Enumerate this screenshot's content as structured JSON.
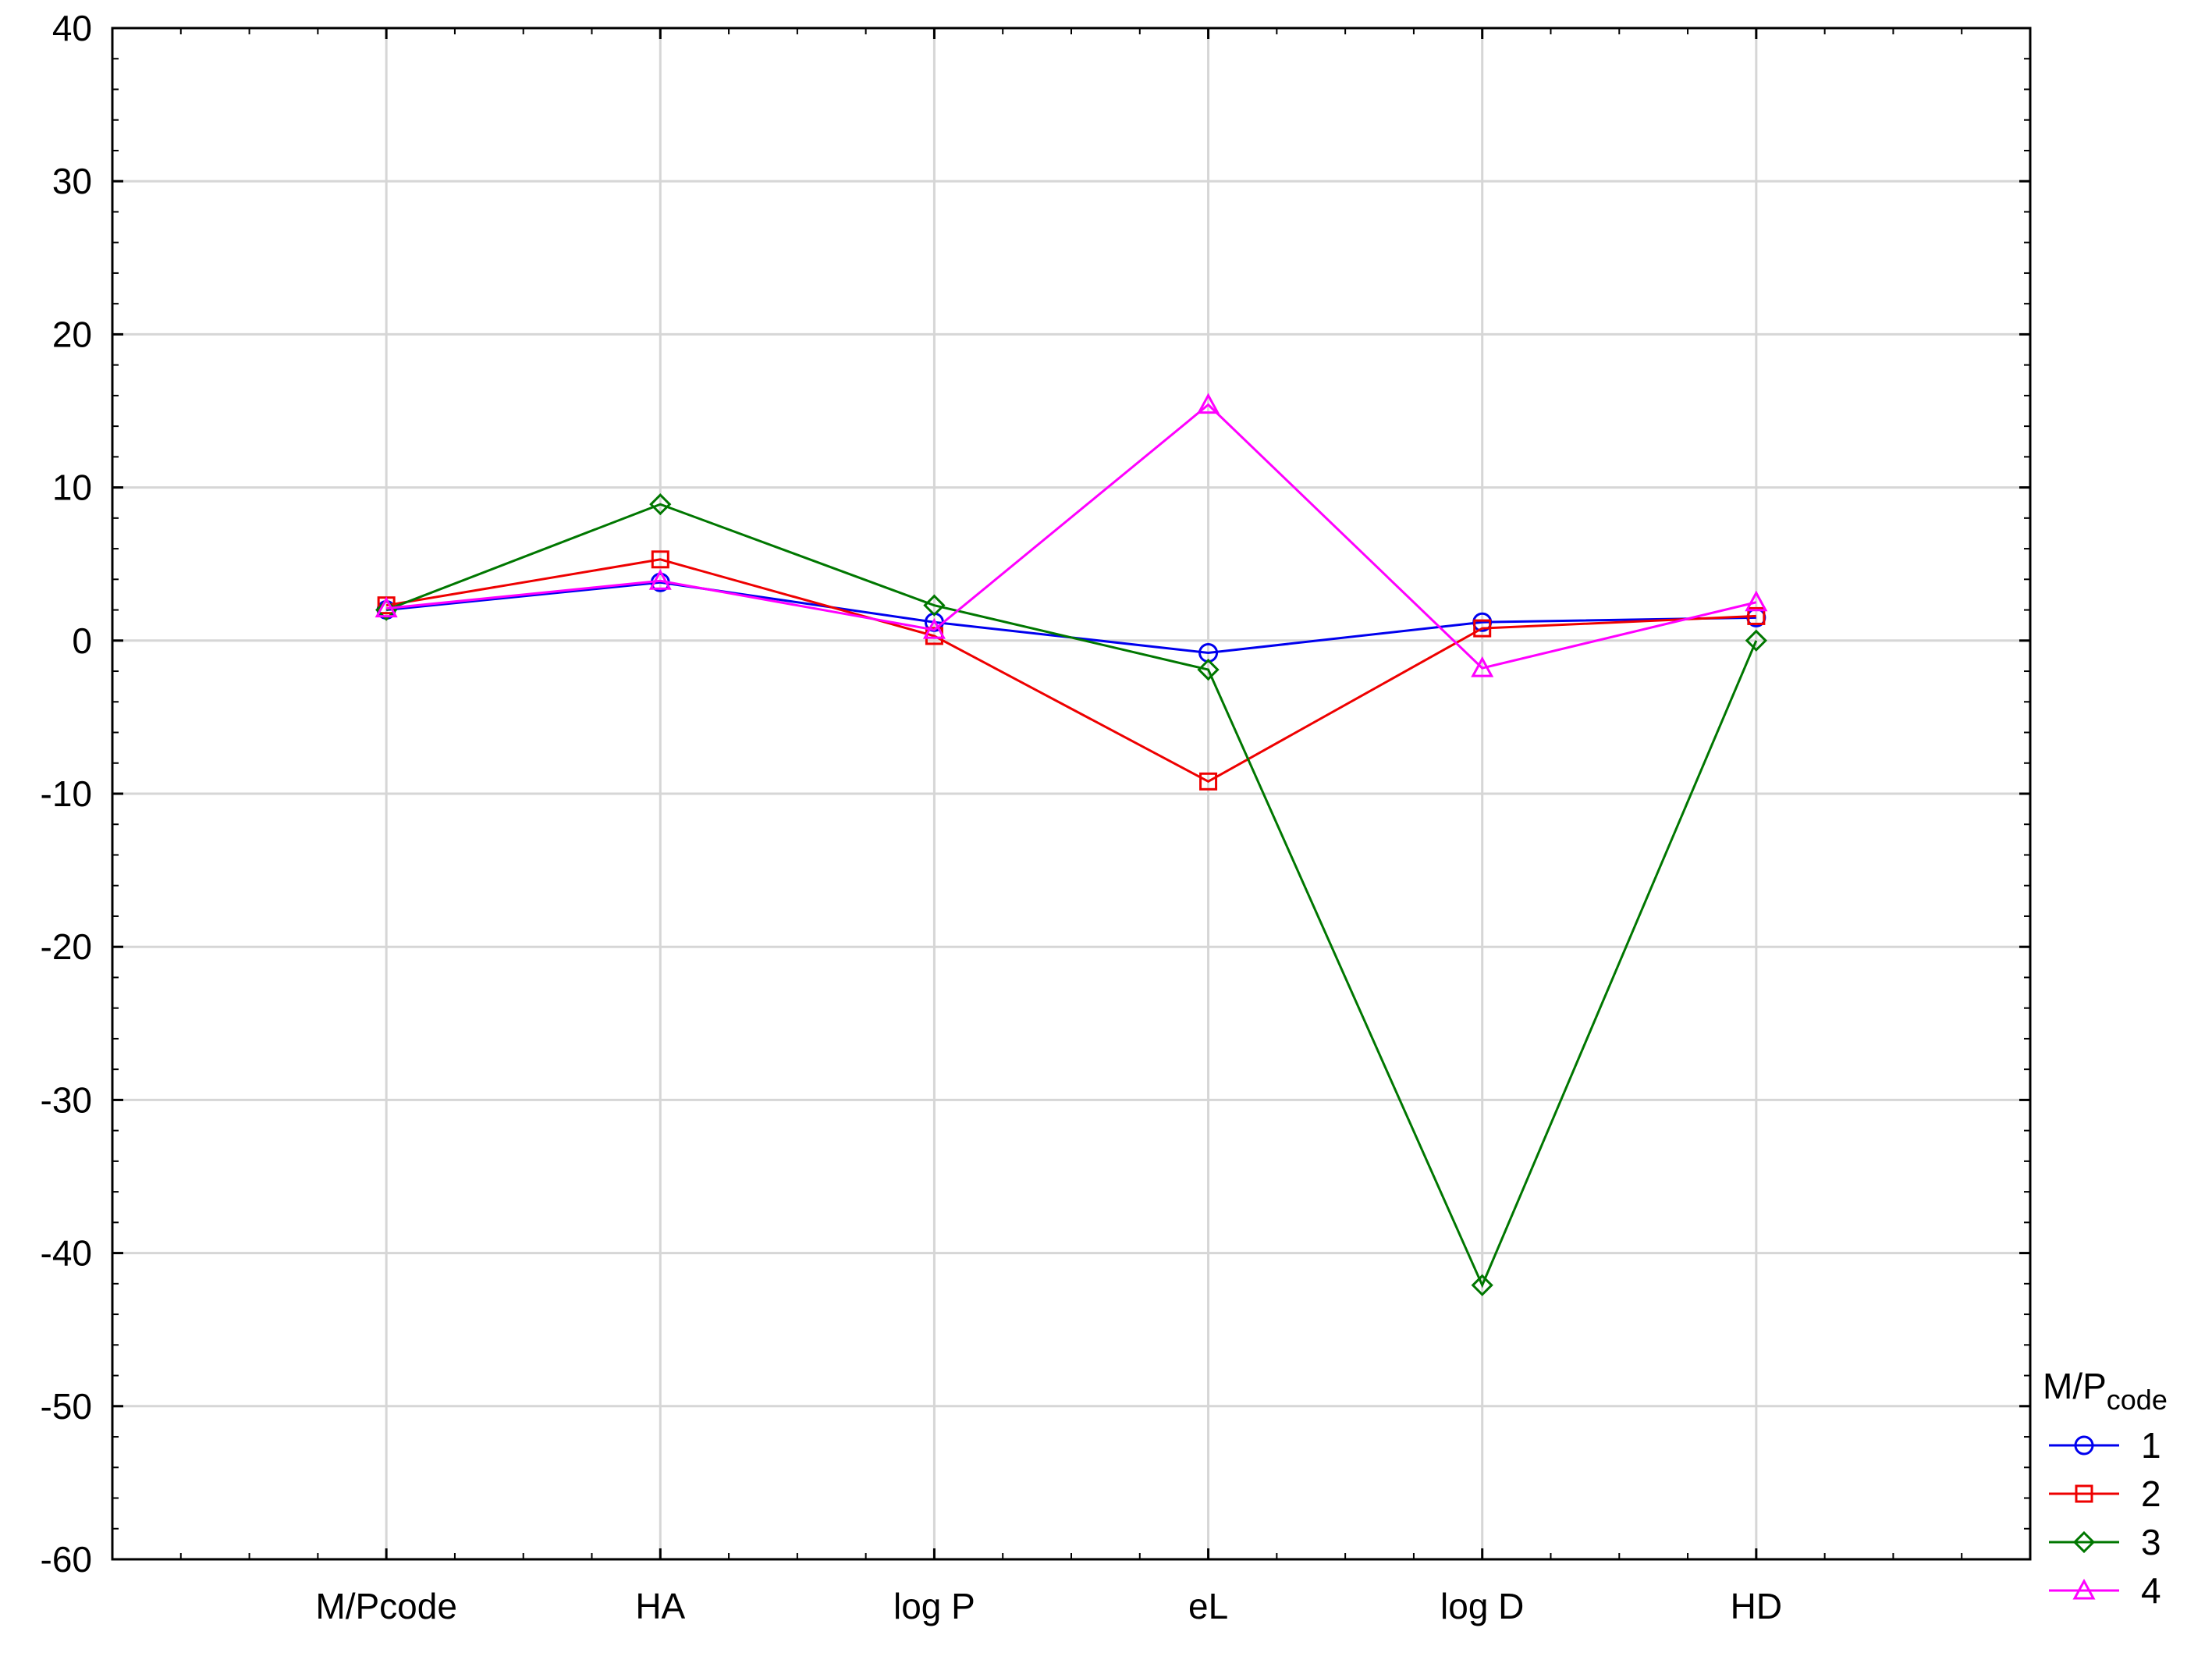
{
  "chart_data": {
    "type": "line",
    "categories": [
      "M/Pcode",
      "HA",
      "log P",
      "eL",
      "log D",
      "HD"
    ],
    "ylim": [
      -60,
      40
    ],
    "yticks": [
      40,
      30,
      20,
      10,
      0,
      -10,
      -20,
      -30,
      -40,
      -50,
      -60
    ],
    "grid": true,
    "legend_title": "M/P",
    "legend_title_sub": "code",
    "legend_position": "right-bottom",
    "series": [
      {
        "name": "1",
        "color": "#0000ee",
        "marker": "circle",
        "values": [
          2.0,
          3.8,
          1.2,
          -0.8,
          1.2,
          1.5
        ]
      },
      {
        "name": "2",
        "color": "#ee0000",
        "marker": "square",
        "values": [
          2.3,
          5.3,
          0.3,
          -9.2,
          0.8,
          1.6
        ]
      },
      {
        "name": "3",
        "color": "#007700",
        "marker": "diamond",
        "values": [
          2.0,
          8.9,
          2.3,
          -1.9,
          -42.1,
          0.0
        ]
      },
      {
        "name": "4",
        "color": "#ff00ff",
        "marker": "triangle",
        "values": [
          2.1,
          3.9,
          0.7,
          15.4,
          -1.8,
          2.5
        ]
      }
    ]
  }
}
